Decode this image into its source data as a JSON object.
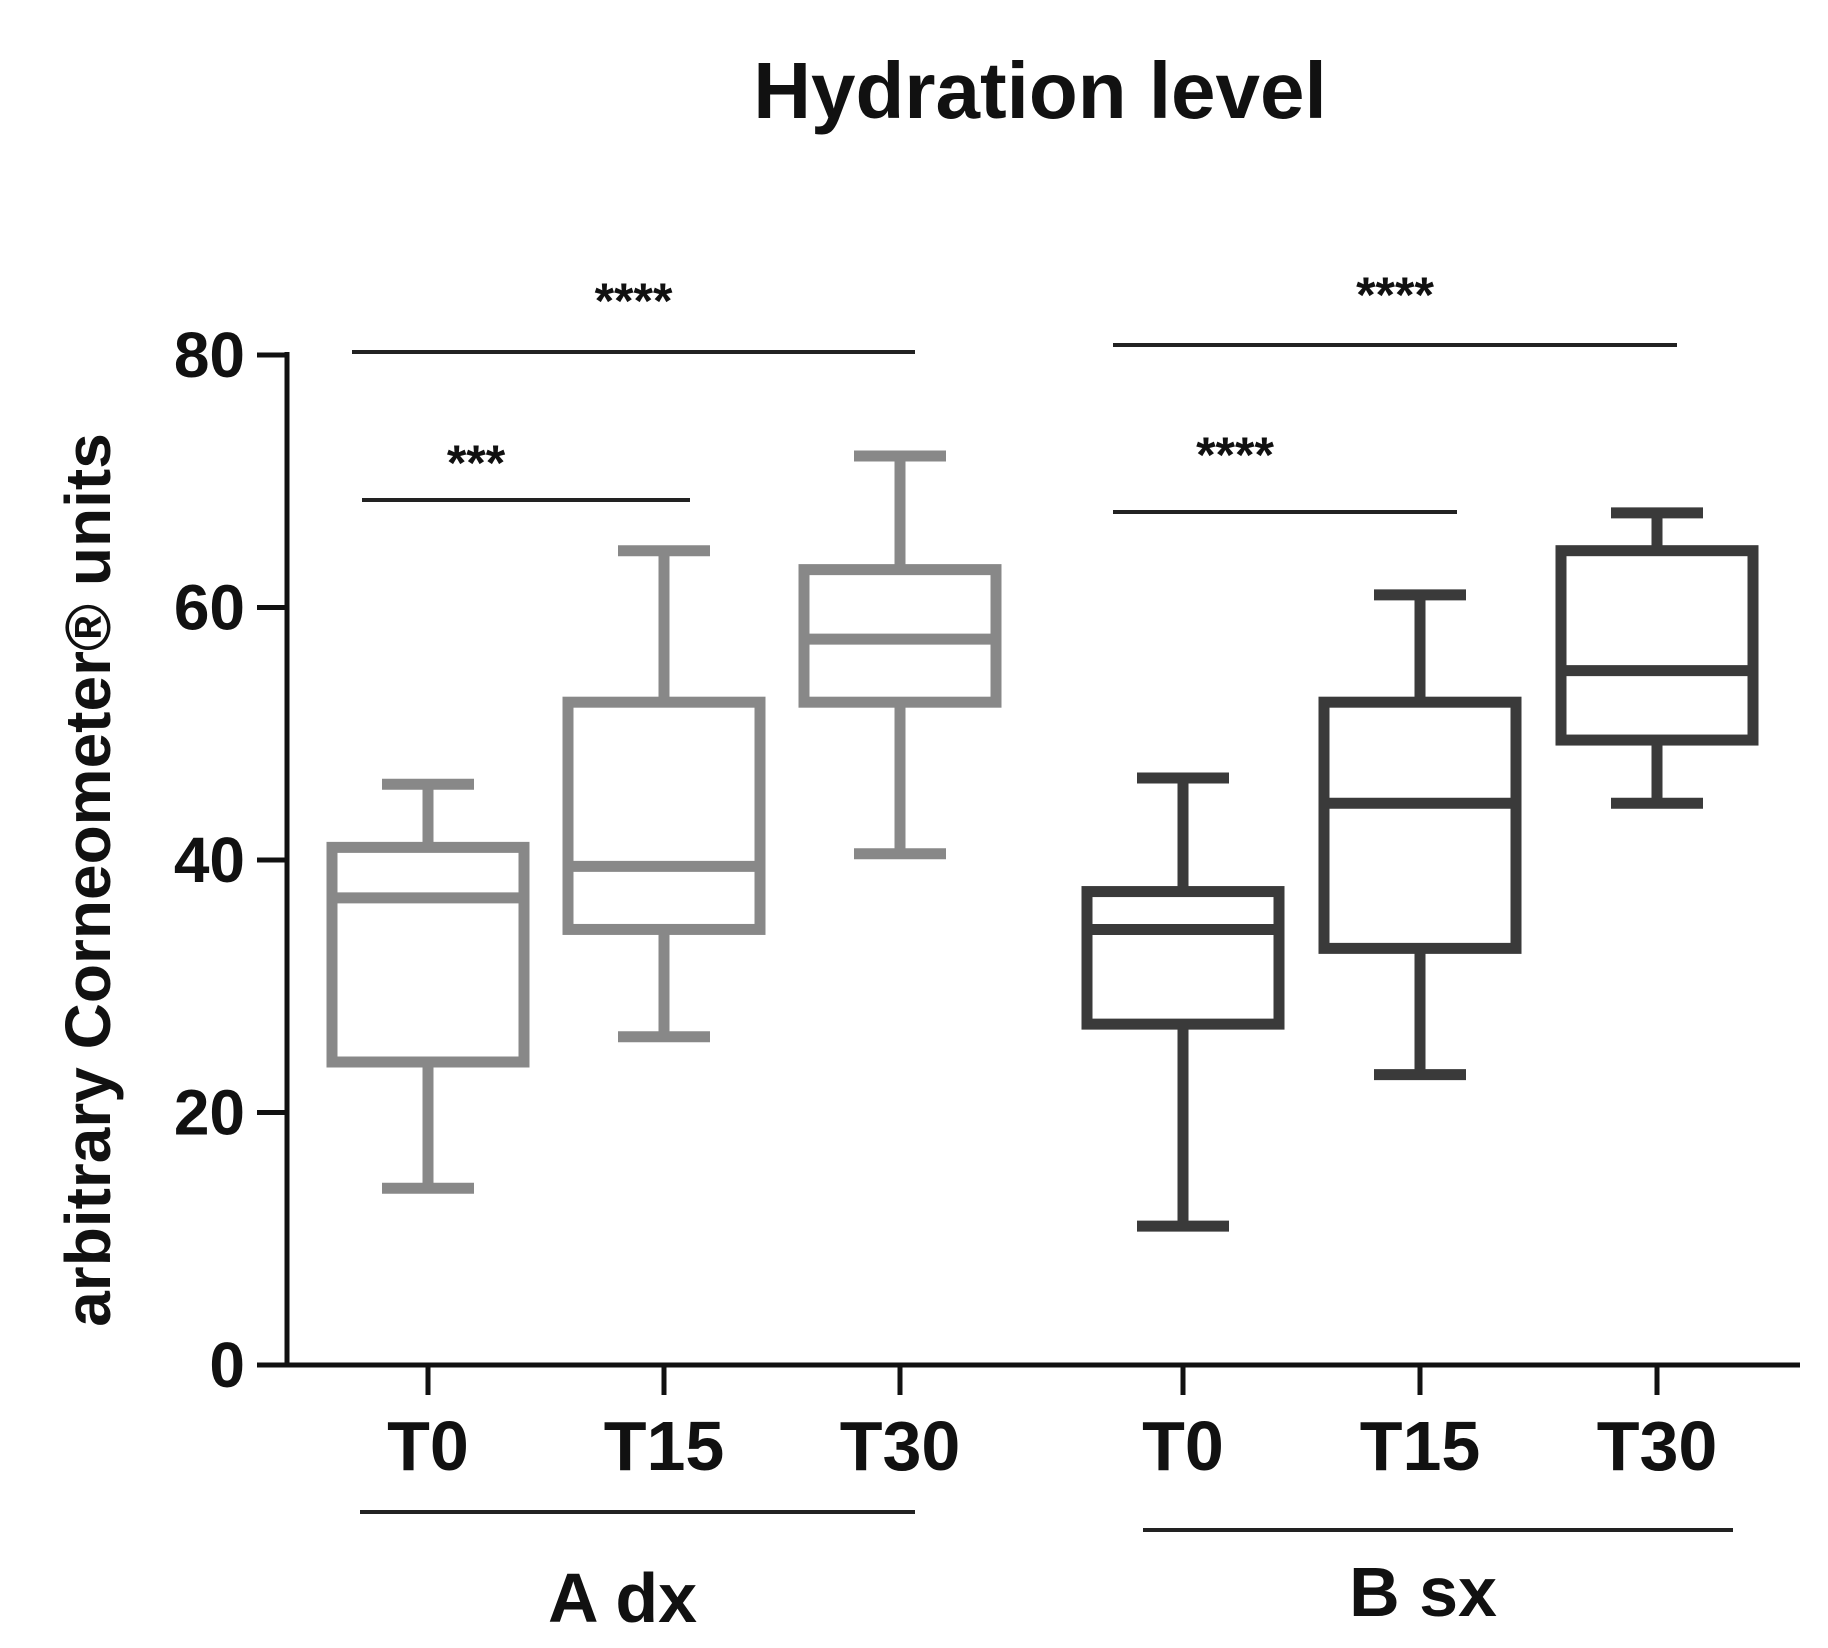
{
  "chart_data": {
    "type": "box",
    "title": "Hydration level",
    "ylabel": "arbitrary Corneometer® units",
    "xlabel": "",
    "ylim": [
      0,
      80
    ],
    "yticks": [
      0,
      20,
      40,
      60,
      80
    ],
    "groups": [
      {
        "name": "A dx",
        "color": "#888888",
        "boxes": [
          {
            "label": "T0",
            "min": 14,
            "q1": 24,
            "median": 37,
            "q3": 41,
            "max": 46
          },
          {
            "label": "T15",
            "min": 26,
            "q1": 34.5,
            "median": 39.5,
            "q3": 52.5,
            "max": 64.5
          },
          {
            "label": "T30",
            "min": 40.5,
            "q1": 52.5,
            "median": 57.5,
            "q3": 63,
            "max": 72
          }
        ],
        "significance": [
          {
            "from": "T0",
            "to": "T30",
            "label": "****"
          },
          {
            "from": "T0",
            "to": "T15",
            "label": "***"
          }
        ]
      },
      {
        "name": "B sx",
        "color": "#3a3a3a",
        "boxes": [
          {
            "label": "T0",
            "min": 11,
            "q1": 27,
            "median": 34.5,
            "q3": 37.5,
            "max": 46.5
          },
          {
            "label": "T15",
            "min": 23,
            "q1": 33,
            "median": 44.5,
            "q3": 52.5,
            "max": 61
          },
          {
            "label": "T30",
            "min": 44.5,
            "q1": 49.5,
            "median": 55,
            "q3": 64.5,
            "max": 67.5
          }
        ],
        "significance": [
          {
            "from": "T0",
            "to": "T30",
            "label": "****"
          },
          {
            "from": "T0",
            "to": "T15",
            "label": "****"
          }
        ]
      }
    ]
  }
}
